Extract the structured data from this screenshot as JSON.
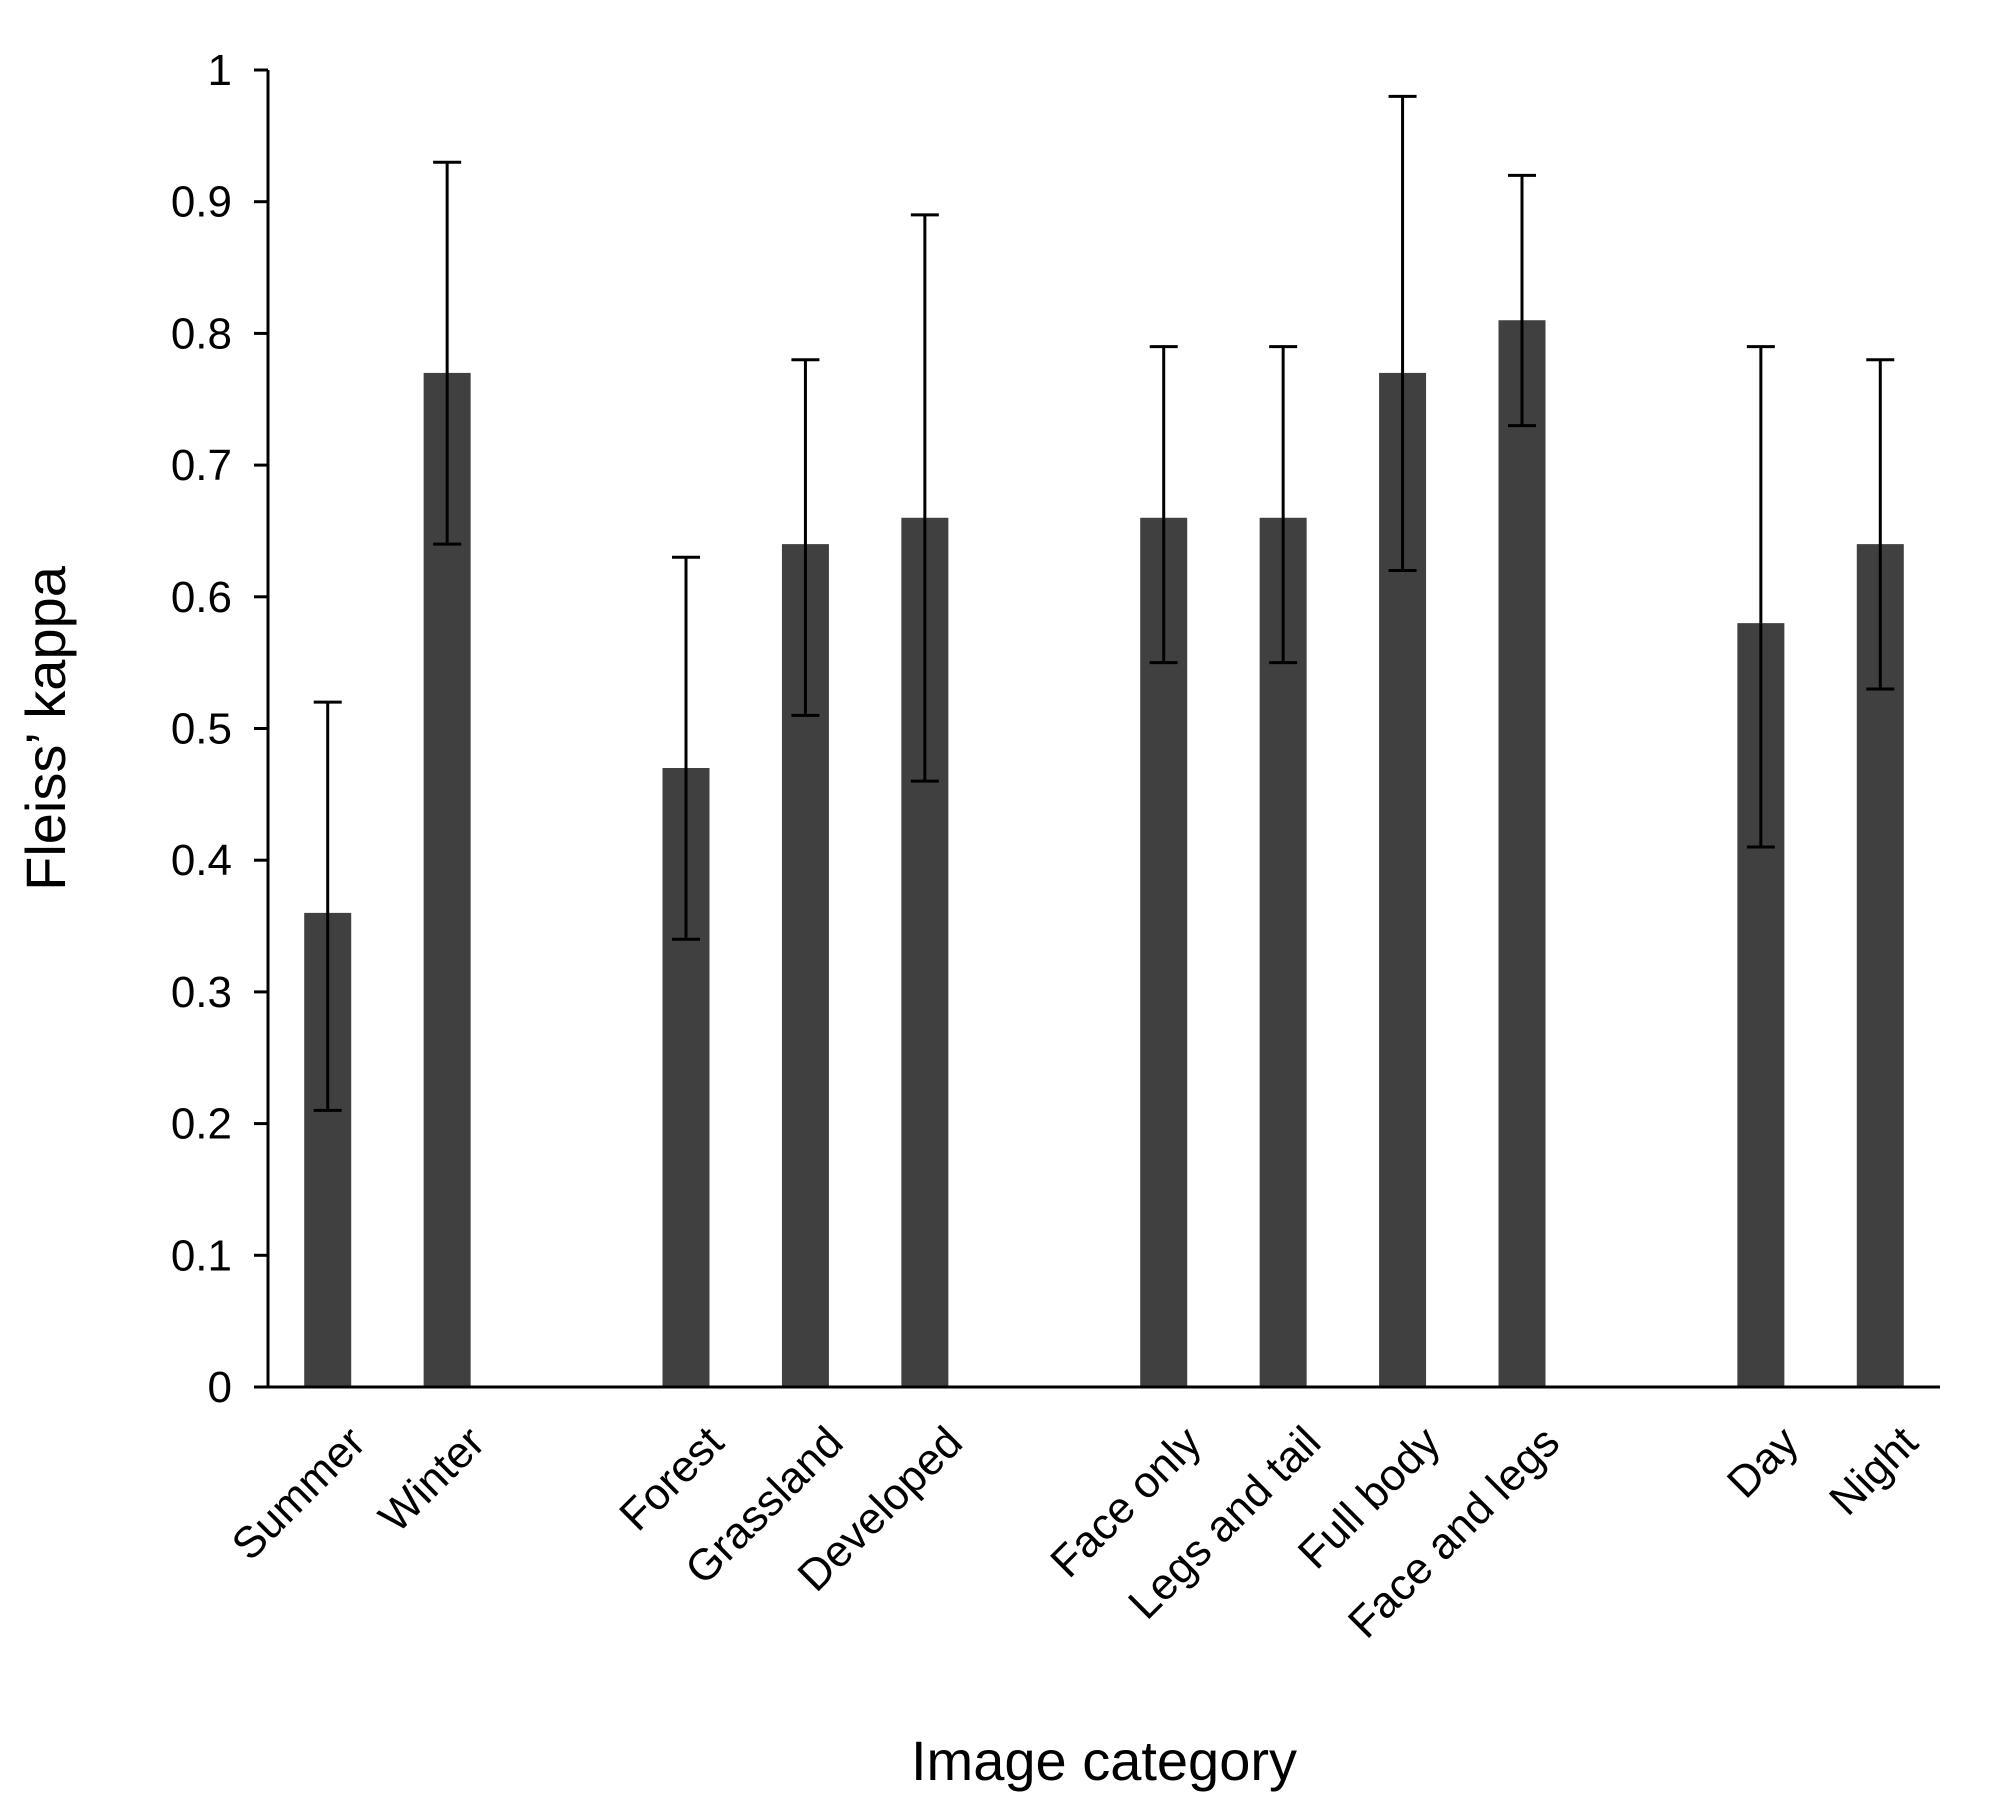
{
  "chart_data": {
    "type": "bar",
    "xlabel": "Image category",
    "ylabel": "Fleiss’ kappa",
    "ylim": [
      0,
      1
    ],
    "yticks": [
      "0",
      "0.1",
      "0.2",
      "0.3",
      "0.4",
      "0.5",
      "0.6",
      "0.7",
      "0.8",
      "0.9",
      "1"
    ],
    "grid": false,
    "bar_color": "#404040",
    "categories": [
      "Summer",
      "Winter",
      "",
      "Forest",
      "Grassland",
      "Developed",
      "",
      "Face only",
      "Legs and tail",
      "Full body",
      "Face and legs",
      "",
      "Day",
      "Night"
    ],
    "values": [
      0.36,
      0.77,
      null,
      0.47,
      0.64,
      0.66,
      null,
      0.66,
      0.66,
      0.77,
      0.81,
      null,
      0.58,
      0.64
    ],
    "error_low": [
      0.21,
      0.64,
      null,
      0.34,
      0.51,
      0.46,
      null,
      0.55,
      0.55,
      0.62,
      0.73,
      null,
      0.41,
      0.53
    ],
    "error_high": [
      0.52,
      0.93,
      null,
      0.63,
      0.78,
      0.89,
      null,
      0.79,
      0.79,
      0.98,
      0.92,
      null,
      0.79,
      0.78
    ]
  }
}
